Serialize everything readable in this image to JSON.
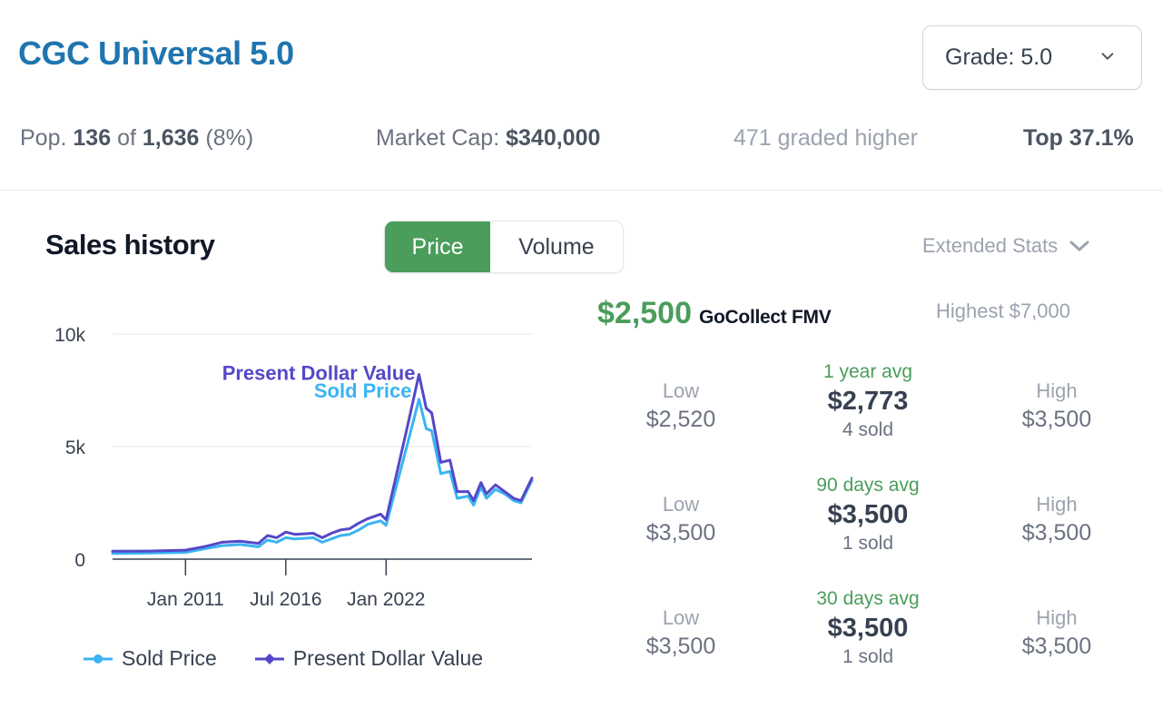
{
  "header": {
    "title": "CGC Universal 5.0",
    "grade_select_label": "Grade: 5.0"
  },
  "stats": {
    "pop_prefix": "Pop.",
    "pop_count": "136",
    "pop_of": "of",
    "pop_total": "1,636",
    "pop_pct": "(8%)",
    "market_cap_label": "Market Cap:",
    "market_cap_value": "$340,000",
    "graded_higher": "471 graded higher",
    "top_pct": "Top 37.1%"
  },
  "sales": {
    "title": "Sales history",
    "toggle_price": "Price",
    "toggle_volume": "Volume",
    "extended_stats": "Extended Stats",
    "fmv_value": "$2,500",
    "fmv_label": "GoCollect FMV",
    "highest": "Highest $7,000",
    "periods": [
      {
        "label": "1 year avg",
        "avg": "$2,773",
        "sold": "4 sold",
        "low_label": "Low",
        "low": "$2,520",
        "high_label": "High",
        "high": "$3,500"
      },
      {
        "label": "90 days avg",
        "avg": "$3,500",
        "sold": "1 sold",
        "low_label": "Low",
        "low": "$3,500",
        "high_label": "High",
        "high": "$3,500"
      },
      {
        "label": "30 days avg",
        "avg": "$3,500",
        "sold": "1 sold",
        "low_label": "Low",
        "low": "$3,500",
        "high_label": "High",
        "high": "$3,500"
      }
    ]
  },
  "colors": {
    "sold_price": "#3ab4f2",
    "present_dollar": "#5548c8",
    "accent_green": "#4a9d5b",
    "title_blue": "#1f75b0"
  },
  "chart_data": {
    "type": "line",
    "x_ticks": [
      "Jan 2011",
      "Jul 2016",
      "Jan 2022"
    ],
    "y_ticks": [
      "0",
      "5k",
      "10k"
    ],
    "ylim": [
      0,
      10000
    ],
    "grid": true,
    "legend_placement": "bottom",
    "series": [
      {
        "name": "Present Dollar Value",
        "color": "#5548c8",
        "points": [
          [
            2007.0,
            350
          ],
          [
            2009.0,
            360
          ],
          [
            2011.0,
            400
          ],
          [
            2012.0,
            550
          ],
          [
            2013.0,
            750
          ],
          [
            2014.0,
            800
          ],
          [
            2015.0,
            700
          ],
          [
            2015.5,
            1050
          ],
          [
            2016.0,
            950
          ],
          [
            2016.5,
            1200
          ],
          [
            2017.0,
            1100
          ],
          [
            2018.0,
            1150
          ],
          [
            2018.5,
            950
          ],
          [
            2019.0,
            1150
          ],
          [
            2019.5,
            1300
          ],
          [
            2020.0,
            1350
          ],
          [
            2020.5,
            1600
          ],
          [
            2021.0,
            1800
          ],
          [
            2021.7,
            2000
          ],
          [
            2022.0,
            1750
          ],
          [
            2023.2,
            6000
          ],
          [
            2023.8,
            8200
          ],
          [
            2024.2,
            6700
          ],
          [
            2024.5,
            6500
          ],
          [
            2025.0,
            4300
          ],
          [
            2025.5,
            4400
          ],
          [
            2025.9,
            3000
          ],
          [
            2026.5,
            3000
          ],
          [
            2026.8,
            2600
          ],
          [
            2027.2,
            3400
          ],
          [
            2027.5,
            2900
          ],
          [
            2028.0,
            3300
          ],
          [
            2028.5,
            3000
          ],
          [
            2029.0,
            2700
          ],
          [
            2029.4,
            2600
          ],
          [
            2030.0,
            3600
          ]
        ]
      },
      {
        "name": "Sold Price",
        "color": "#3ab4f2",
        "points": [
          [
            2007.0,
            250
          ],
          [
            2009.0,
            270
          ],
          [
            2011.0,
            300
          ],
          [
            2012.0,
            450
          ],
          [
            2013.0,
            600
          ],
          [
            2014.0,
            650
          ],
          [
            2015.0,
            550
          ],
          [
            2015.5,
            850
          ],
          [
            2016.0,
            750
          ],
          [
            2016.5,
            950
          ],
          [
            2017.0,
            900
          ],
          [
            2018.0,
            950
          ],
          [
            2018.5,
            750
          ],
          [
            2019.0,
            900
          ],
          [
            2019.5,
            1050
          ],
          [
            2020.0,
            1100
          ],
          [
            2020.5,
            1300
          ],
          [
            2021.0,
            1550
          ],
          [
            2021.7,
            1700
          ],
          [
            2022.0,
            1500
          ],
          [
            2023.2,
            5200
          ],
          [
            2023.8,
            7100
          ],
          [
            2024.2,
            5800
          ],
          [
            2024.5,
            5700
          ],
          [
            2025.0,
            3800
          ],
          [
            2025.5,
            3900
          ],
          [
            2025.9,
            2700
          ],
          [
            2026.5,
            2800
          ],
          [
            2026.8,
            2400
          ],
          [
            2027.2,
            3200
          ],
          [
            2027.5,
            2700
          ],
          [
            2028.0,
            3100
          ],
          [
            2028.5,
            2900
          ],
          [
            2029.0,
            2600
          ],
          [
            2029.4,
            2500
          ],
          [
            2030.0,
            3500
          ]
        ]
      }
    ]
  }
}
